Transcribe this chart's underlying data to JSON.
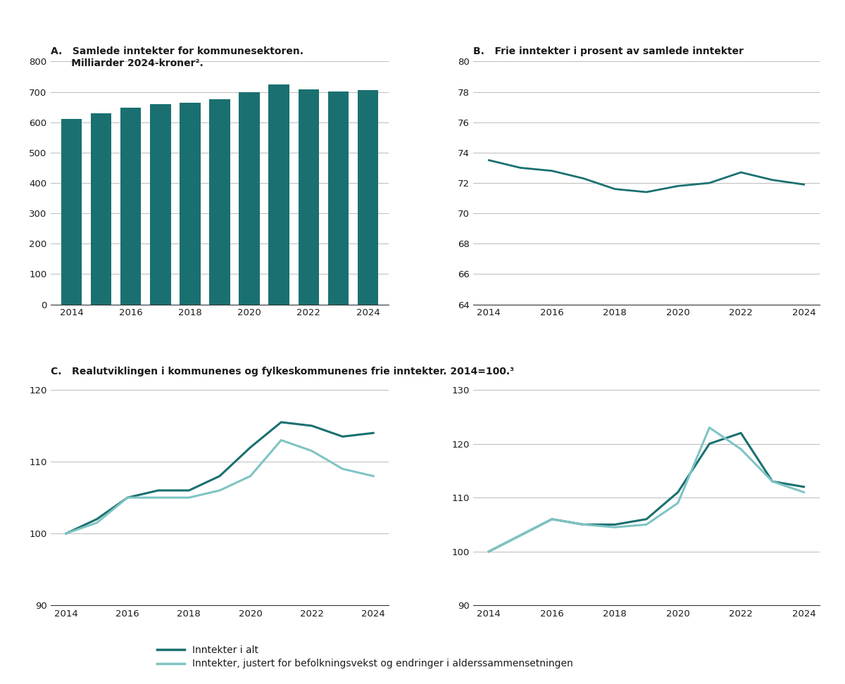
{
  "panel_A": {
    "title_line1": "A.   Samlede inntekter for kommunesektoren.",
    "title_line2": "      Milliarder 2024-kroner².",
    "years": [
      2014,
      2015,
      2016,
      2017,
      2018,
      2019,
      2020,
      2021,
      2022,
      2023,
      2024
    ],
    "values": [
      610,
      630,
      648,
      660,
      665,
      675,
      700,
      725,
      708,
      702,
      707
    ],
    "bar_color": "#1a7070",
    "ylim": [
      0,
      800
    ],
    "yticks": [
      0,
      100,
      200,
      300,
      400,
      500,
      600,
      700,
      800
    ],
    "xticks": [
      2014,
      2016,
      2018,
      2020,
      2022,
      2024
    ],
    "xlim": [
      2013.3,
      2024.7
    ]
  },
  "panel_B": {
    "title": "B.   Frie inntekter i prosent av samlede inntekter",
    "years": [
      2014,
      2015,
      2016,
      2017,
      2018,
      2019,
      2020,
      2021,
      2022,
      2023,
      2024
    ],
    "values": [
      73.5,
      73.0,
      72.8,
      72.3,
      71.6,
      71.4,
      71.8,
      72.0,
      72.7,
      72.2,
      71.9
    ],
    "line_color": "#1a7070",
    "ylim": [
      64,
      80
    ],
    "yticks": [
      64,
      66,
      68,
      70,
      72,
      74,
      76,
      78,
      80
    ],
    "xticks": [
      2014,
      2016,
      2018,
      2020,
      2022,
      2024
    ],
    "xlim": [
      2013.5,
      2024.5
    ]
  },
  "panel_C_title": "C.   Realutviklingen i kommunenes og fylkeskommunenes frie inntekter. 2014=100.³",
  "panel_C_left": {
    "years": [
      2014,
      2015,
      2016,
      2017,
      2018,
      2019,
      2020,
      2021,
      2022,
      2023,
      2024
    ],
    "inntekter_i_alt": [
      100,
      102,
      105,
      106,
      106,
      108,
      112,
      115.5,
      115,
      113.5,
      114
    ],
    "justert": [
      100,
      101.5,
      105,
      105,
      105,
      106,
      108,
      113,
      111.5,
      109,
      108
    ],
    "ylim": [
      90,
      120
    ],
    "yticks": [
      90,
      100,
      110,
      120
    ],
    "xticks": [
      2014,
      2016,
      2018,
      2020,
      2022,
      2024
    ],
    "xlim": [
      2013.5,
      2024.5
    ]
  },
  "panel_C_right": {
    "years": [
      2014,
      2015,
      2016,
      2017,
      2018,
      2019,
      2020,
      2021,
      2022,
      2023,
      2024
    ],
    "inntekter_i_alt": [
      100,
      103,
      106,
      105,
      105,
      106,
      111,
      120,
      122,
      113,
      112
    ],
    "justert": [
      100,
      103,
      106,
      105,
      104.5,
      105,
      109,
      123,
      119,
      113,
      111
    ],
    "ylim": [
      90,
      130
    ],
    "yticks": [
      90,
      100,
      110,
      120,
      130
    ],
    "xticks": [
      2014,
      2016,
      2018,
      2020,
      2022,
      2024
    ],
    "xlim": [
      2013.5,
      2024.5
    ]
  },
  "colors": {
    "dark_teal": "#1a7070",
    "light_blue": "#7fc4c4"
  },
  "legend": {
    "line1": "Inntekter i alt",
    "line2": "Inntekter, justert for befolkningsvekst og endringer i alderssammensetningen"
  },
  "background_color": "#ffffff",
  "grid_color": "#bbbbbb",
  "axis_color": "#333333",
  "font_color": "#1a1a1a"
}
